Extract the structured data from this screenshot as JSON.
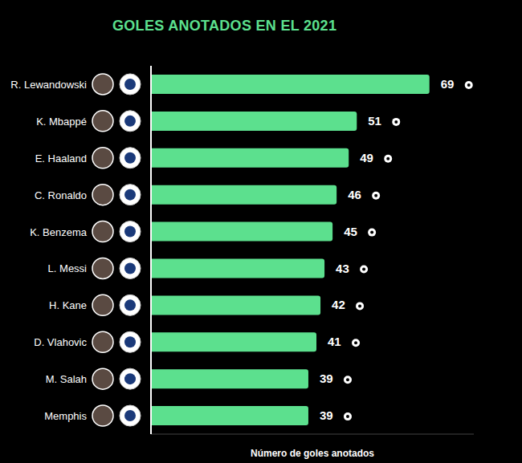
{
  "chart_data": {
    "type": "bar",
    "title": "GOLES ANOTADOS EN EL 2021",
    "x_label": "Número de goles anotados",
    "categories": [
      "R. Lewandowski",
      "K. Mbappé",
      "E. Haaland",
      "C. Ronaldo",
      "K. Benzema",
      "L. Messi",
      "H. Kane",
      "D. Vlahovic",
      "M. Salah",
      "Memphis"
    ],
    "values": [
      69,
      51,
      49,
      46,
      45,
      43,
      42,
      41,
      39,
      39
    ],
    "color": "#5ce08e",
    "xlim": [
      0,
      80
    ],
    "orientation": "horizontal",
    "data_labels": true,
    "tick_labels": "y",
    "grid": false
  }
}
